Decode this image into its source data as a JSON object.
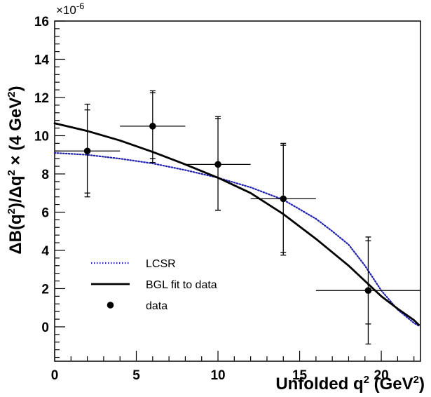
{
  "chart_data": {
    "type": "scatter",
    "xlabel": "Unfolded q",
    "xlabel_sup": "2",
    "xlabel_unit": "(GeV",
    "xlabel_unit_sup": "2",
    "xlabel_close": ")",
    "ylabel_parts": [
      "ΔB(q",
      "2",
      ")/Δq",
      "2",
      " × (4 GeV",
      "2",
      ")"
    ],
    "y_multiplier": "×10",
    "y_multiplier_exp": "-6",
    "xlim": [
      0,
      22.4
    ],
    "ylim": [
      -1.8,
      16
    ],
    "xticks": [
      0,
      5,
      10,
      15,
      20
    ],
    "yticks": [
      0,
      2,
      4,
      6,
      8,
      10,
      12,
      14,
      16
    ],
    "grid": false,
    "legend_position": "bottom-left",
    "series": [
      {
        "name": "LCSR",
        "kind": "line",
        "style": "dotted",
        "color": "#1f1fb0",
        "x": [
          0,
          2,
          4,
          6,
          8,
          10,
          12,
          14,
          16,
          17,
          18,
          19,
          20,
          21,
          22,
          22.3
        ],
        "y": [
          9.1,
          9.0,
          8.8,
          8.55,
          8.2,
          7.8,
          7.3,
          6.65,
          5.65,
          5.0,
          4.3,
          3.2,
          1.9,
          0.9,
          0.2,
          0.05
        ]
      },
      {
        "name": "BGL fit to data",
        "kind": "line",
        "style": "solid",
        "color": "#000000",
        "x": [
          0,
          2,
          4,
          6,
          8,
          10,
          12,
          14,
          16,
          18,
          19,
          20,
          21,
          22,
          22.3
        ],
        "y": [
          10.65,
          10.25,
          9.75,
          9.15,
          8.5,
          7.8,
          7.0,
          5.9,
          4.6,
          3.2,
          2.4,
          1.6,
          0.95,
          0.35,
          0.1
        ]
      },
      {
        "name": "data",
        "kind": "points",
        "color": "#000000",
        "points": [
          {
            "x": 2,
            "y": 9.2,
            "xlo": 0,
            "xhi": 4,
            "ylo_outer": 6.8,
            "yhi_outer": 11.65,
            "ylo_inner": 7.0,
            "yhi_inner": 11.35
          },
          {
            "x": 6,
            "y": 10.5,
            "xlo": 4,
            "xhi": 8,
            "ylo_outer": 8.6,
            "yhi_outer": 12.35,
            "ylo_inner": 8.8,
            "yhi_inner": 12.25
          },
          {
            "x": 10,
            "y": 8.5,
            "xlo": 8,
            "xhi": 12,
            "ylo_outer": 6.1,
            "yhi_outer": 11.0,
            "ylo_inner": 6.1,
            "yhi_inner": 10.9
          },
          {
            "x": 14,
            "y": 6.7,
            "xlo": 12,
            "xhi": 16,
            "ylo_outer": 3.75,
            "yhi_outer": 9.6,
            "ylo_inner": 3.9,
            "yhi_inner": 9.5
          },
          {
            "x": 19.2,
            "y": 1.9,
            "xlo": 16,
            "xhi": 22.4,
            "ylo_outer": -0.9,
            "yhi_outer": 4.7,
            "ylo_inner": 0.15,
            "yhi_inner": 4.5
          }
        ]
      }
    ]
  }
}
